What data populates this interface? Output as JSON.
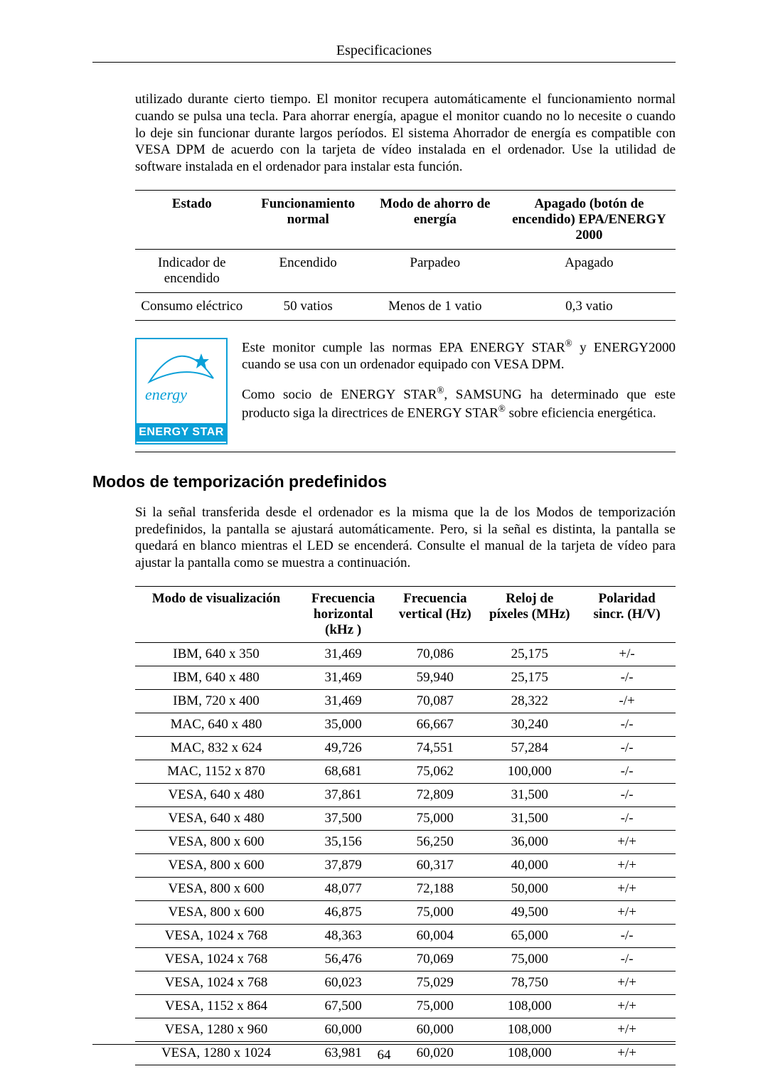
{
  "header": {
    "title": "Especificaciones"
  },
  "intro_paragraph": "utilizado durante cierto tiempo. El monitor recupera automáticamente el funcionamiento normal cuando se pulsa una tecla. Para ahorrar energía, apague el monitor cuando no lo necesite o cuando lo deje sin funcionar durante largos períodos. El sistema Ahorrador de energía es compatible con VESA DPM de acuerdo con la tarjeta de vídeo instalada en el ordenador. Use la utilidad de software instalada en el ordenador para instalar esta función.",
  "power_table": {
    "columns": [
      "Estado",
      "Funcionamiento normal",
      "Modo de ahorro de energía",
      "Apagado (botón de encendido) EPA/ENERGY 2000"
    ],
    "rows": [
      [
        "Indicador de encendido",
        "Encendido",
        "Parpadeo",
        "Apagado"
      ],
      [
        "Consumo eléctrico",
        "50 vatios",
        "Menos de 1 vatio",
        "0,3 vatio"
      ]
    ]
  },
  "energy_star": {
    "logo_script": "energy",
    "logo_label": "ENERGY STAR",
    "logo_colors": {
      "blue": "#0ba0d8",
      "white": "#ffffff"
    },
    "para1_a": "Este monitor cumple las normas EPA ENERGY STAR",
    "para1_b": " y ENERGY2000 cuando se usa con un ordenador equipado con VESA DPM.",
    "para2_a": "Como socio de ENERGY STAR",
    "para2_b": ", SAMSUNG ha determinado que este producto siga la directrices de ENERGY STAR",
    "para2_c": " sobre eficiencia energética."
  },
  "timing_section": {
    "heading": "Modos de temporización predefinidos",
    "intro": "Si la señal transferida desde el ordenador es la misma que la de los Modos de temporización predefinidos, la pantalla se ajustará automáticamente. Pero, si la señal es distinta, la pantalla se quedará en blanco mientras el LED se encenderá. Consulte el manual de la tarjeta de vídeo para ajustar la pantalla como se muestra a continuación.",
    "columns": [
      "Modo de visualización",
      "Frecuencia horizontal (kHz )",
      "Frecuencia vertical (Hz)",
      "Reloj de píxeles (MHz)",
      "Polaridad sincr. (H/V)"
    ],
    "rows": [
      [
        "IBM, 640 x 350",
        "31,469",
        "70,086",
        "25,175",
        "+/-"
      ],
      [
        "IBM, 640 x 480",
        "31,469",
        "59,940",
        "25,175",
        "-/-"
      ],
      [
        "IBM, 720 x 400",
        "31,469",
        "70,087",
        "28,322",
        "-/+"
      ],
      [
        "MAC, 640 x 480",
        "35,000",
        "66,667",
        "30,240",
        "-/-"
      ],
      [
        "MAC, 832 x 624",
        "49,726",
        "74,551",
        "57,284",
        "-/-"
      ],
      [
        "MAC, 1152 x 870",
        "68,681",
        "75,062",
        "100,000",
        "-/-"
      ],
      [
        "VESA, 640 x 480",
        "37,861",
        "72,809",
        "31,500",
        "-/-"
      ],
      [
        "VESA, 640 x 480",
        "37,500",
        "75,000",
        "31,500",
        "-/-"
      ],
      [
        "VESA, 800 x 600",
        "35,156",
        "56,250",
        "36,000",
        "+/+"
      ],
      [
        "VESA, 800 x 600",
        "37,879",
        "60,317",
        "40,000",
        "+/+"
      ],
      [
        "VESA, 800 x 600",
        "48,077",
        "72,188",
        "50,000",
        "+/+"
      ],
      [
        "VESA, 800 x 600",
        "46,875",
        "75,000",
        "49,500",
        "+/+"
      ],
      [
        "VESA, 1024 x 768",
        "48,363",
        "60,004",
        "65,000",
        "-/-"
      ],
      [
        "VESA, 1024 x 768",
        "56,476",
        "70,069",
        "75,000",
        "-/-"
      ],
      [
        "VESA, 1024 x 768",
        "60,023",
        "75,029",
        "78,750",
        "+/+"
      ],
      [
        "VESA, 1152 x 864",
        "67,500",
        "75,000",
        "108,000",
        "+/+"
      ],
      [
        "VESA, 1280 x 960",
        "60,000",
        "60,000",
        "108,000",
        "+/+"
      ],
      [
        "VESA, 1280 x 1024",
        "63,981",
        "60,020",
        "108,000",
        "+/+"
      ]
    ]
  },
  "page_number": "64",
  "colors": {
    "text": "#000000",
    "background": "#ffffff",
    "rule": "#000000",
    "logo_blue": "#0ba0d8"
  },
  "fonts": {
    "body_family": "Times New Roman",
    "heading_family": "Arial",
    "body_size_pt": 14,
    "heading_size_pt": 17
  }
}
